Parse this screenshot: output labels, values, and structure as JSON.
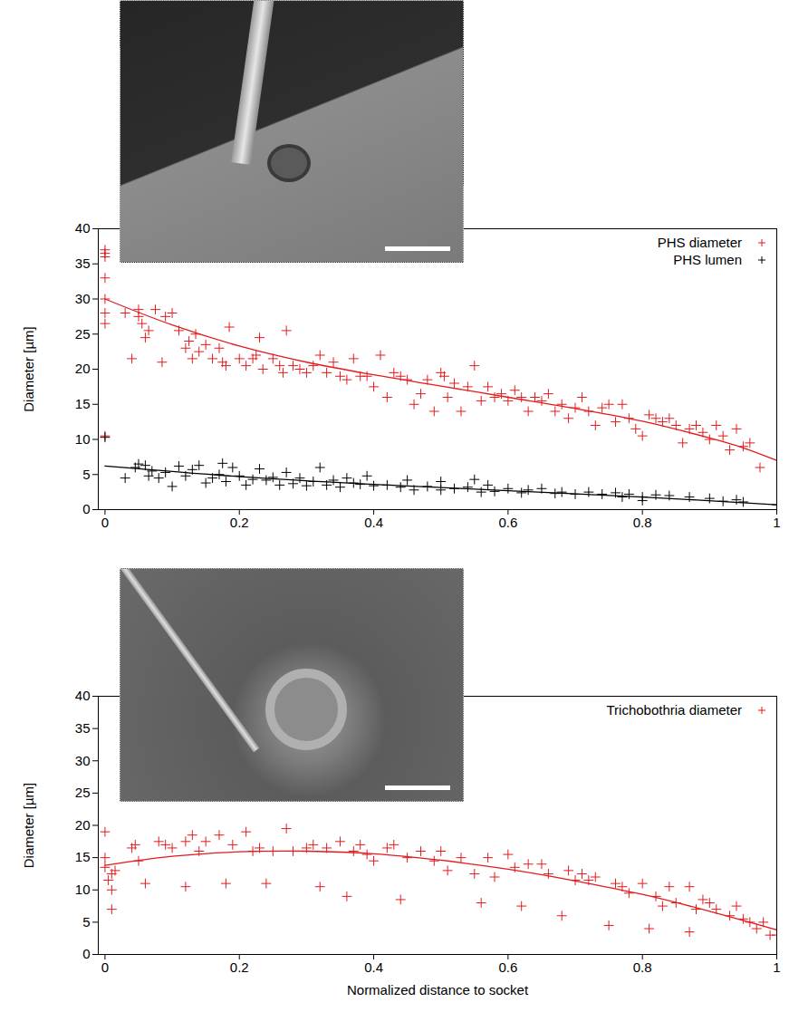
{
  "chart_data": [
    {
      "type": "scatter",
      "y_label": "Diameter [µm]",
      "xlim": [
        -0.01,
        1
      ],
      "ylim": [
        0,
        40
      ],
      "xticks": [
        0,
        0.2,
        0.4,
        0.6,
        0.8,
        1
      ],
      "yticks": [
        0,
        5,
        10,
        15,
        20,
        25,
        30,
        35,
        40
      ],
      "legend": "top-right",
      "series": [
        {
          "name": "PHS diameter",
          "color": "#e41a1c",
          "marker": "plus",
          "x": [
            0,
            0,
            0,
            0,
            0,
            0,
            0,
            0,
            0.03,
            0.04,
            0.05,
            0.05,
            0.055,
            0.06,
            0.065,
            0.075,
            0.085,
            0.09,
            0.1,
            0.11,
            0.12,
            0.125,
            0.13,
            0.135,
            0.14,
            0.15,
            0.16,
            0.17,
            0.175,
            0.18,
            0.185,
            0.2,
            0.21,
            0.22,
            0.225,
            0.23,
            0.235,
            0.25,
            0.26,
            0.265,
            0.27,
            0.28,
            0.29,
            0.3,
            0.31,
            0.32,
            0.33,
            0.34,
            0.35,
            0.36,
            0.37,
            0.38,
            0.39,
            0.4,
            0.41,
            0.42,
            0.43,
            0.44,
            0.45,
            0.46,
            0.47,
            0.48,
            0.49,
            0.5,
            0.505,
            0.51,
            0.52,
            0.53,
            0.54,
            0.55,
            0.56,
            0.57,
            0.58,
            0.59,
            0.6,
            0.61,
            0.62,
            0.63,
            0.64,
            0.65,
            0.66,
            0.67,
            0.68,
            0.69,
            0.7,
            0.71,
            0.72,
            0.73,
            0.74,
            0.75,
            0.76,
            0.77,
            0.78,
            0.79,
            0.8,
            0.81,
            0.82,
            0.83,
            0.84,
            0.85,
            0.86,
            0.87,
            0.88,
            0.89,
            0.9,
            0.91,
            0.92,
            0.93,
            0.94,
            0.95,
            0.96,
            0.975
          ],
          "values": [
            37,
            36.5,
            36,
            33,
            30,
            28,
            26.5,
            10.5,
            28,
            21.5,
            28.5,
            27.5,
            26.5,
            24.5,
            25.5,
            28.5,
            21,
            27.5,
            28,
            25.5,
            23,
            24,
            21.5,
            25,
            22.5,
            23.5,
            21.5,
            23,
            21,
            20.5,
            26,
            21.5,
            20.5,
            21.5,
            22,
            24.5,
            20,
            21.5,
            20.5,
            19.5,
            25.5,
            20.5,
            20,
            19.5,
            20.5,
            22,
            19.5,
            21,
            19,
            18.5,
            21.5,
            19,
            19,
            17.5,
            22,
            16,
            19.5,
            19,
            18.5,
            15,
            16.5,
            18.5,
            14,
            19.5,
            19,
            16,
            18,
            14,
            17.5,
            20.5,
            15.5,
            17.5,
            16,
            16.5,
            15.5,
            17,
            16,
            14,
            16,
            15.5,
            16.5,
            14,
            15,
            13,
            14.5,
            16,
            14,
            12,
            14.5,
            15,
            12.5,
            15,
            13,
            11.5,
            10.5,
            13.5,
            13,
            12.5,
            13,
            12,
            9.5,
            11.5,
            12,
            11,
            10,
            12,
            10.5,
            8.5,
            11.5,
            9,
            9.5,
            6
          ]
        },
        {
          "name": "PHS lumen",
          "color": "#000000",
          "marker": "plus",
          "x": [
            0,
            0.03,
            0.045,
            0.05,
            0.06,
            0.065,
            0.07,
            0.08,
            0.09,
            0.1,
            0.11,
            0.12,
            0.13,
            0.14,
            0.15,
            0.16,
            0.17,
            0.175,
            0.18,
            0.19,
            0.2,
            0.21,
            0.22,
            0.23,
            0.24,
            0.25,
            0.26,
            0.27,
            0.28,
            0.29,
            0.3,
            0.31,
            0.32,
            0.33,
            0.34,
            0.35,
            0.36,
            0.37,
            0.38,
            0.39,
            0.4,
            0.42,
            0.44,
            0.45,
            0.46,
            0.48,
            0.5,
            0.5,
            0.52,
            0.54,
            0.55,
            0.56,
            0.57,
            0.58,
            0.6,
            0.62,
            0.63,
            0.65,
            0.67,
            0.68,
            0.7,
            0.72,
            0.74,
            0.76,
            0.77,
            0.78,
            0.8,
            0.8,
            0.82,
            0.84,
            0.87,
            0.9,
            0.92,
            0.94,
            0.95,
            1
          ],
          "values": [
            10.3,
            4.5,
            6,
            6.5,
            6.3,
            4.8,
            5.5,
            4.5,
            5.3,
            3.3,
            6.2,
            4.8,
            5.7,
            6.3,
            3.8,
            4.5,
            5,
            6.6,
            4,
            6,
            4.8,
            3.5,
            4.3,
            5.8,
            4.2,
            4.6,
            3.5,
            5.3,
            3.7,
            4.5,
            3.4,
            4,
            6,
            3.5,
            4.2,
            3.2,
            4.5,
            3.8,
            3.6,
            4.8,
            3.4,
            3.5,
            3.2,
            4.2,
            2.8,
            3.3,
            2.8,
            4,
            3,
            3.2,
            4.3,
            2.5,
            3.5,
            2.6,
            3,
            2.4,
            2.8,
            3,
            2.3,
            2.5,
            2.2,
            2.5,
            2.2,
            2.4,
            1.8,
            2.2,
            1.8,
            1.3,
            2.1,
            2,
            1.8,
            1.6,
            1.2,
            1.4,
            1.1,
            0.7
          ]
        },
        {
          "type": "line",
          "color": "#e41a1c",
          "x": [
            0,
            0.1,
            0.2,
            0.3,
            0.4,
            0.5,
            0.6,
            0.7,
            0.8,
            0.9,
            0.95,
            1
          ],
          "values": [
            30,
            26.3,
            23.3,
            21,
            19.2,
            17.6,
            16,
            14.4,
            12.6,
            10.2,
            8.8,
            7
          ]
        },
        {
          "type": "line",
          "color": "#000000",
          "x": [
            0,
            0.2,
            0.4,
            0.6,
            0.8,
            1
          ],
          "values": [
            6.2,
            4.7,
            3.6,
            2.7,
            1.8,
            0.7
          ]
        }
      ]
    },
    {
      "type": "scatter",
      "x_label": "Normalized distance to socket",
      "y_label": "Diameter [µm]",
      "xlim": [
        -0.01,
        1
      ],
      "ylim": [
        0,
        40
      ],
      "xticks": [
        0,
        0.2,
        0.4,
        0.6,
        0.8,
        1
      ],
      "yticks": [
        0,
        5,
        10,
        15,
        20,
        25,
        30,
        35,
        40
      ],
      "legend": "top-right",
      "series": [
        {
          "name": "Trichobothria diameter",
          "color": "#e41a1c",
          "marker": "plus",
          "x": [
            0,
            0,
            0,
            0.005,
            0.01,
            0.01,
            0.01,
            0.015,
            0.04,
            0.045,
            0.05,
            0.06,
            0.08,
            0.09,
            0.1,
            0.12,
            0.12,
            0.13,
            0.14,
            0.15,
            0.17,
            0.18,
            0.19,
            0.21,
            0.22,
            0.23,
            0.24,
            0.25,
            0.27,
            0.28,
            0.3,
            0.31,
            0.32,
            0.33,
            0.35,
            0.36,
            0.37,
            0.38,
            0.39,
            0.4,
            0.42,
            0.43,
            0.44,
            0.45,
            0.47,
            0.49,
            0.5,
            0.51,
            0.53,
            0.55,
            0.56,
            0.57,
            0.58,
            0.6,
            0.61,
            0.62,
            0.63,
            0.65,
            0.66,
            0.68,
            0.69,
            0.7,
            0.71,
            0.72,
            0.73,
            0.75,
            0.76,
            0.77,
            0.78,
            0.8,
            0.81,
            0.82,
            0.83,
            0.84,
            0.85,
            0.87,
            0.87,
            0.88,
            0.89,
            0.9,
            0.91,
            0.93,
            0.94,
            0.95,
            0.96,
            0.97,
            0.98,
            0.99,
            1
          ],
          "values": [
            19,
            15,
            13.5,
            11.5,
            12.5,
            10,
            7,
            13,
            16.5,
            17,
            14.5,
            11,
            17.5,
            17,
            16.5,
            17.5,
            10.5,
            18.5,
            16,
            17.5,
            18.5,
            11,
            17,
            19,
            16,
            16.5,
            11,
            16,
            19.5,
            16,
            16.5,
            17,
            10.5,
            16.5,
            17.5,
            9,
            16,
            17,
            15.5,
            14.5,
            16.5,
            17,
            8.5,
            15,
            16,
            14.5,
            16,
            13,
            15,
            12.5,
            8,
            15,
            12,
            15.5,
            13.5,
            7.5,
            14,
            14,
            12.5,
            6,
            13,
            11.5,
            12.5,
            11.5,
            12,
            4.5,
            11,
            10.5,
            9.5,
            11,
            4,
            9,
            7.5,
            10.5,
            8,
            10.5,
            3.5,
            7,
            8.5,
            8,
            7,
            6,
            7.5,
            5.5,
            5,
            4,
            5,
            3,
            3
          ]
        },
        {
          "type": "line",
          "color": "#e41a1c",
          "x": [
            0,
            0.1,
            0.2,
            0.3,
            0.4,
            0.5,
            0.6,
            0.7,
            0.8,
            0.9,
            1
          ],
          "values": [
            13.8,
            15.2,
            15.9,
            16,
            15.6,
            14.6,
            13.2,
            11.4,
            9.3,
            6.7,
            3.8
          ]
        }
      ]
    }
  ]
}
